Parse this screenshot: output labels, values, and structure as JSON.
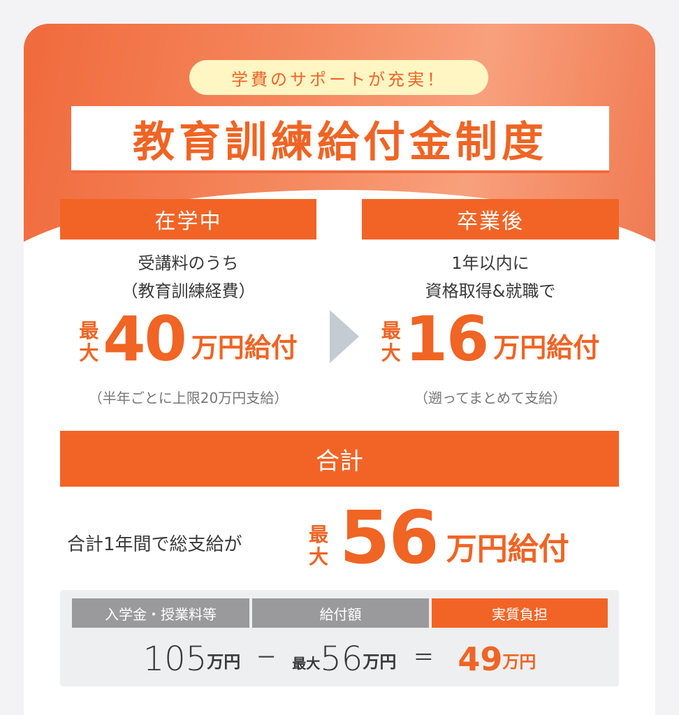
{
  "badge": "学費のサポートが充実！",
  "title": "教育訓練給付金制度",
  "left": {
    "label": "在学中",
    "line1": "受講料のうち",
    "line2": "（教育訓練経費）",
    "max1": "最",
    "max2": "大",
    "amount": "40",
    "unit": "万円給付",
    "note": "（半年ごとに上限20万円支給）"
  },
  "right": {
    "label": "卒業後",
    "line1": "1年以内に",
    "line2": "資格取得&就職で",
    "max1": "最",
    "max2": "大",
    "amount": "16",
    "unit": "万円給付",
    "note": "（遡ってまとめて支給）"
  },
  "total": {
    "label": "合計",
    "text": "合計1年間で総支給が",
    "max1": "最",
    "max2": "大",
    "amount": "56",
    "unit": "万円給付"
  },
  "summary": {
    "headers": [
      "入学金・授業料等",
      "給付額",
      "実質負担"
    ],
    "tuition": "105",
    "tuition_unit": "万円",
    "minus": "－",
    "benefit_prefix": "最大",
    "benefit": "56",
    "benefit_unit": "万円",
    "equals": "＝",
    "burden": "49",
    "burden_unit": "万円"
  },
  "colors": {
    "accent": "#f26426",
    "badge_bg": "#fff6c4",
    "header_gray": "#9a9a9c"
  },
  "icons": {
    "arrow": "triangle-right-icon"
  }
}
